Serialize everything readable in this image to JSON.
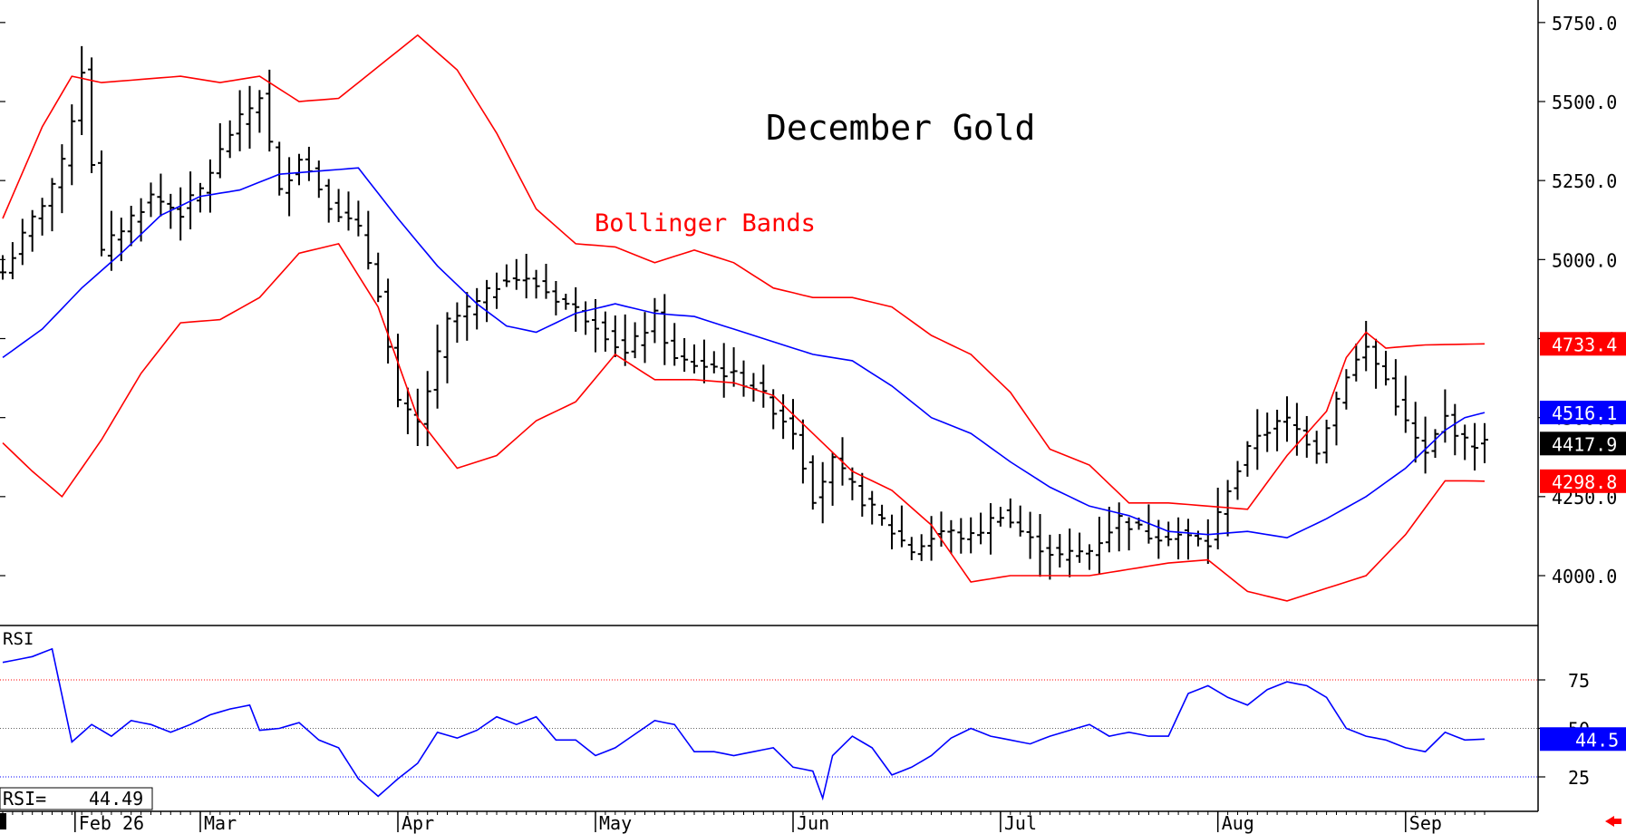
{
  "chart_data": {
    "type": "ohlc",
    "title": "December Gold",
    "annotation": "Bollinger Bands",
    "price_axis": {
      "ticks": [
        "5750.0",
        "5500.0",
        "5250.0",
        "5000.0",
        "4750.0",
        "4500.0",
        "4250.0",
        "4000.0"
      ],
      "tick_values": [
        5750,
        5500,
        5250,
        5000,
        4750,
        4500,
        4250,
        4000
      ],
      "range": [
        3920,
        5790
      ]
    },
    "x_axis": {
      "labels": [
        "Feb 26",
        "Mar",
        "Apr",
        "May",
        "Jun",
        "Jul",
        "Aug",
        "Sep"
      ],
      "label_index": [
        2,
        20,
        40,
        60,
        80,
        101,
        123,
        142
      ],
      "count": 156
    },
    "anchors": {
      "close": [
        [
          0,
          4960
        ],
        [
          4,
          5180
        ],
        [
          6,
          5300
        ],
        [
          8,
          5600
        ],
        [
          10,
          5020
        ],
        [
          12,
          5100
        ],
        [
          15,
          5200
        ],
        [
          18,
          5150
        ],
        [
          20,
          5220
        ],
        [
          23,
          5400
        ],
        [
          26,
          5520
        ],
        [
          28,
          5210
        ],
        [
          30,
          5330
        ],
        [
          33,
          5180
        ],
        [
          36,
          5090
        ],
        [
          38,
          4900
        ],
        [
          40,
          4540
        ],
        [
          42,
          4480
        ],
        [
          45,
          4800
        ],
        [
          48,
          4860
        ],
        [
          51,
          4950
        ],
        [
          54,
          4920
        ],
        [
          57,
          4860
        ],
        [
          60,
          4800
        ],
        [
          63,
          4700
        ],
        [
          66,
          4820
        ],
        [
          68,
          4680
        ],
        [
          72,
          4660
        ],
        [
          76,
          4600
        ],
        [
          80,
          4460
        ],
        [
          82,
          4250
        ],
        [
          84,
          4360
        ],
        [
          87,
          4240
        ],
        [
          90,
          4140
        ],
        [
          92,
          4080
        ],
        [
          95,
          4140
        ],
        [
          98,
          4120
        ],
        [
          101,
          4200
        ],
        [
          104,
          4110
        ],
        [
          107,
          4060
        ],
        [
          110,
          4080
        ],
        [
          113,
          4180
        ],
        [
          116,
          4130
        ],
        [
          119,
          4130
        ],
        [
          122,
          4100
        ],
        [
          124,
          4280
        ],
        [
          127,
          4450
        ],
        [
          130,
          4490
        ],
        [
          133,
          4400
        ],
        [
          136,
          4640
        ],
        [
          138,
          4720
        ],
        [
          140,
          4620
        ],
        [
          142,
          4480
        ],
        [
          144,
          4380
        ],
        [
          146,
          4500
        ],
        [
          148,
          4420
        ],
        [
          150,
          4417.9
        ]
      ],
      "midband": [
        [
          0,
          4690
        ],
        [
          4,
          4780
        ],
        [
          8,
          4910
        ],
        [
          12,
          5020
        ],
        [
          16,
          5140
        ],
        [
          20,
          5200
        ],
        [
          24,
          5220
        ],
        [
          28,
          5270
        ],
        [
          32,
          5280
        ],
        [
          36,
          5290
        ],
        [
          40,
          5130
        ],
        [
          44,
          4980
        ],
        [
          48,
          4860
        ],
        [
          51,
          4790
        ],
        [
          54,
          4770
        ],
        [
          58,
          4830
        ],
        [
          62,
          4860
        ],
        [
          66,
          4830
        ],
        [
          70,
          4820
        ],
        [
          74,
          4780
        ],
        [
          78,
          4740
        ],
        [
          82,
          4700
        ],
        [
          86,
          4680
        ],
        [
          90,
          4600
        ],
        [
          94,
          4500
        ],
        [
          98,
          4450
        ],
        [
          102,
          4360
        ],
        [
          106,
          4280
        ],
        [
          110,
          4220
        ],
        [
          114,
          4190
        ],
        [
          118,
          4140
        ],
        [
          122,
          4130
        ],
        [
          126,
          4140
        ],
        [
          130,
          4120
        ],
        [
          134,
          4180
        ],
        [
          138,
          4250
        ],
        [
          142,
          4340
        ],
        [
          146,
          4460
        ],
        [
          148,
          4500
        ],
        [
          150,
          4516.1
        ]
      ],
      "upperband": [
        [
          0,
          5130
        ],
        [
          4,
          5420
        ],
        [
          7,
          5580
        ],
        [
          10,
          5560
        ],
        [
          14,
          5570
        ],
        [
          18,
          5580
        ],
        [
          22,
          5560
        ],
        [
          26,
          5580
        ],
        [
          30,
          5500
        ],
        [
          34,
          5510
        ],
        [
          38,
          5610
        ],
        [
          42,
          5710
        ],
        [
          46,
          5600
        ],
        [
          50,
          5400
        ],
        [
          54,
          5160
        ],
        [
          58,
          5050
        ],
        [
          62,
          5040
        ],
        [
          66,
          4990
        ],
        [
          70,
          5030
        ],
        [
          74,
          4990
        ],
        [
          78,
          4910
        ],
        [
          82,
          4880
        ],
        [
          86,
          4880
        ],
        [
          90,
          4850
        ],
        [
          94,
          4760
        ],
        [
          98,
          4700
        ],
        [
          102,
          4580
        ],
        [
          106,
          4400
        ],
        [
          110,
          4350
        ],
        [
          114,
          4230
        ],
        [
          118,
          4230
        ],
        [
          122,
          4220
        ],
        [
          126,
          4210
        ],
        [
          130,
          4380
        ],
        [
          134,
          4520
        ],
        [
          136,
          4690
        ],
        [
          138,
          4770
        ],
        [
          140,
          4720
        ],
        [
          144,
          4730
        ],
        [
          150,
          4733.4
        ]
      ],
      "lowerband": [
        [
          0,
          4420
        ],
        [
          3,
          4330
        ],
        [
          6,
          4250
        ],
        [
          10,
          4430
        ],
        [
          14,
          4640
        ],
        [
          18,
          4800
        ],
        [
          22,
          4810
        ],
        [
          26,
          4880
        ],
        [
          30,
          5020
        ],
        [
          34,
          5050
        ],
        [
          38,
          4850
        ],
        [
          42,
          4500
        ],
        [
          46,
          4340
        ],
        [
          50,
          4380
        ],
        [
          54,
          4490
        ],
        [
          58,
          4550
        ],
        [
          62,
          4700
        ],
        [
          66,
          4620
        ],
        [
          70,
          4620
        ],
        [
          74,
          4610
        ],
        [
          78,
          4570
        ],
        [
          82,
          4450
        ],
        [
          86,
          4330
        ],
        [
          90,
          4270
        ],
        [
          94,
          4160
        ],
        [
          98,
          3980
        ],
        [
          102,
          4000
        ],
        [
          106,
          4000
        ],
        [
          110,
          4000
        ],
        [
          114,
          4020
        ],
        [
          118,
          4040
        ],
        [
          122,
          4050
        ],
        [
          126,
          3950
        ],
        [
          130,
          3920
        ],
        [
          134,
          3960
        ],
        [
          138,
          4000
        ],
        [
          142,
          4130
        ],
        [
          146,
          4300
        ],
        [
          148,
          4300
        ],
        [
          150,
          4298.8
        ]
      ]
    },
    "price_labels": {
      "upper": "4733.4",
      "mid": "4516.1",
      "last": "4417.9",
      "lower": "4298.8",
      "upper_value": 4733.4,
      "mid_value": 4516.1,
      "last_value": 4417.9,
      "lower_value": 4298.8
    },
    "rsi": {
      "label": "RSI",
      "readout_label": "RSI=",
      "readout_value": "44.49",
      "last_label": "44.5",
      "last_value": 44.5,
      "ticks": [
        "75",
        "50",
        "25"
      ],
      "tick_values": [
        75,
        50,
        25
      ],
      "range": [
        6,
        97
      ],
      "anchors": [
        [
          0,
          84
        ],
        [
          3,
          87
        ],
        [
          5,
          91
        ],
        [
          7,
          43
        ],
        [
          9,
          52
        ],
        [
          11,
          46
        ],
        [
          13,
          54
        ],
        [
          15,
          52
        ],
        [
          17,
          48
        ],
        [
          19,
          52
        ],
        [
          21,
          57
        ],
        [
          23,
          60
        ],
        [
          25,
          62
        ],
        [
          26,
          49
        ],
        [
          28,
          50
        ],
        [
          30,
          53
        ],
        [
          32,
          44
        ],
        [
          34,
          40
        ],
        [
          36,
          24
        ],
        [
          38,
          15
        ],
        [
          40,
          24
        ],
        [
          42,
          32
        ],
        [
          44,
          48
        ],
        [
          46,
          45
        ],
        [
          48,
          49
        ],
        [
          50,
          56
        ],
        [
          52,
          52
        ],
        [
          54,
          56
        ],
        [
          56,
          44
        ],
        [
          58,
          44
        ],
        [
          60,
          36
        ],
        [
          62,
          40
        ],
        [
          64,
          47
        ],
        [
          66,
          54
        ],
        [
          68,
          52
        ],
        [
          70,
          38
        ],
        [
          72,
          38
        ],
        [
          74,
          36
        ],
        [
          76,
          38
        ],
        [
          78,
          40
        ],
        [
          80,
          30
        ],
        [
          82,
          28
        ],
        [
          83,
          14
        ],
        [
          84,
          36
        ],
        [
          86,
          46
        ],
        [
          88,
          40
        ],
        [
          90,
          26
        ],
        [
          92,
          30
        ],
        [
          94,
          36
        ],
        [
          96,
          45
        ],
        [
          98,
          50
        ],
        [
          100,
          46
        ],
        [
          102,
          44
        ],
        [
          104,
          42
        ],
        [
          106,
          46
        ],
        [
          108,
          49
        ],
        [
          110,
          52
        ],
        [
          112,
          46
        ],
        [
          114,
          48
        ],
        [
          116,
          46
        ],
        [
          118,
          46
        ],
        [
          120,
          68
        ],
        [
          122,
          72
        ],
        [
          124,
          66
        ],
        [
          126,
          62
        ],
        [
          128,
          70
        ],
        [
          130,
          74
        ],
        [
          132,
          72
        ],
        [
          134,
          66
        ],
        [
          136,
          50
        ],
        [
          138,
          46
        ],
        [
          140,
          44
        ],
        [
          142,
          40
        ],
        [
          144,
          38
        ],
        [
          146,
          48
        ],
        [
          148,
          44
        ],
        [
          150,
          44.5
        ]
      ]
    },
    "colors": {
      "price_bars": "#000000",
      "midband": "#0000ff",
      "bands": "#ff0000",
      "rsi_line": "#0000ff",
      "rsi_upper_line": "#ff0000",
      "rsi_lower_line": "#0000ff",
      "label_bg_red": "#ff0000",
      "label_bg_blue": "#0000ff",
      "label_bg_black": "#000000"
    }
  }
}
